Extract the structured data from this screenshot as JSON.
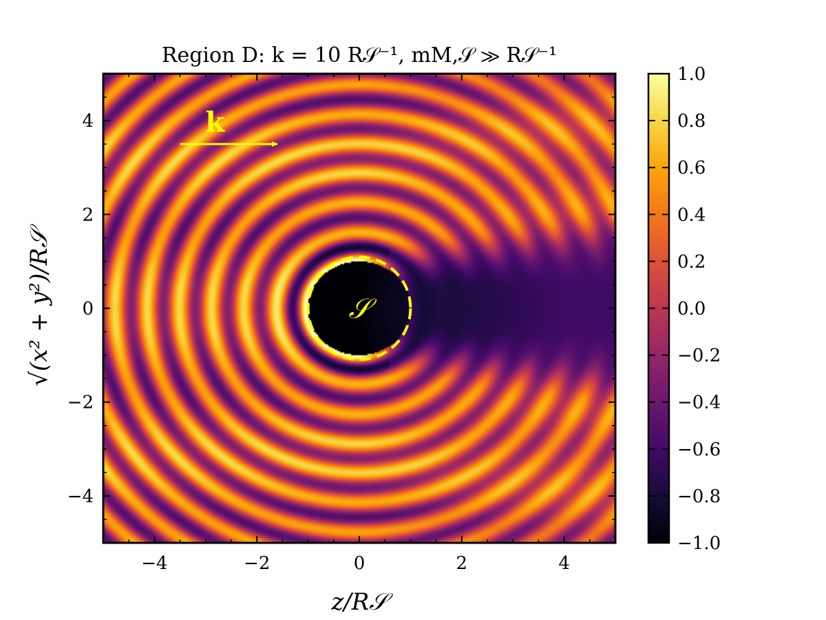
{
  "chart_data": {
    "type": "heatmap",
    "title": "Region D: k = 10 R𝒮⁻¹, mM,𝒮 ≫ R𝒮⁻¹",
    "xlabel": "z/R𝒮",
    "ylabel": "√(x² + y²)/R𝒮",
    "xlim": [
      -5,
      5
    ],
    "ylim": [
      -5,
      5
    ],
    "x_ticks": [
      -4,
      -2,
      0,
      2,
      4
    ],
    "x_tick_labels": [
      "−4",
      "−2",
      "0",
      "2",
      "4"
    ],
    "y_ticks": [
      -4,
      -2,
      0,
      2,
      4
    ],
    "y_tick_labels": [
      "−4",
      "−2",
      "0",
      "2",
      "4"
    ],
    "colorbar": {
      "range": [
        -1.0,
        1.0
      ],
      "colormap": "inferno",
      "ticks": [
        1.0,
        0.8,
        0.6,
        0.4,
        0.2,
        0.0,
        -0.2,
        -0.4,
        -0.6,
        -0.8,
        -1.0
      ],
      "tick_labels": [
        "1.0",
        "0.8",
        "0.6",
        "0.4",
        "0.2",
        "0.0",
        "−0.2",
        "−0.4",
        "−0.6",
        "−0.8",
        "−1.0"
      ]
    },
    "field": {
      "wavenumber": 10,
      "wave_direction": "+z",
      "obstacle_radius": 1.0
    },
    "annotations": [
      {
        "text": "k",
        "type": "wave-vector-arrow",
        "from": [
          -3.5,
          3.5
        ],
        "to": [
          -1.6,
          3.5
        ],
        "color": "#ffff00"
      },
      {
        "text": "𝒮",
        "type": "circle",
        "center": [
          0,
          0
        ],
        "radius": 1.0,
        "style": "dashed",
        "color": "#ffff00"
      }
    ],
    "grid": false,
    "legend": "none"
  }
}
